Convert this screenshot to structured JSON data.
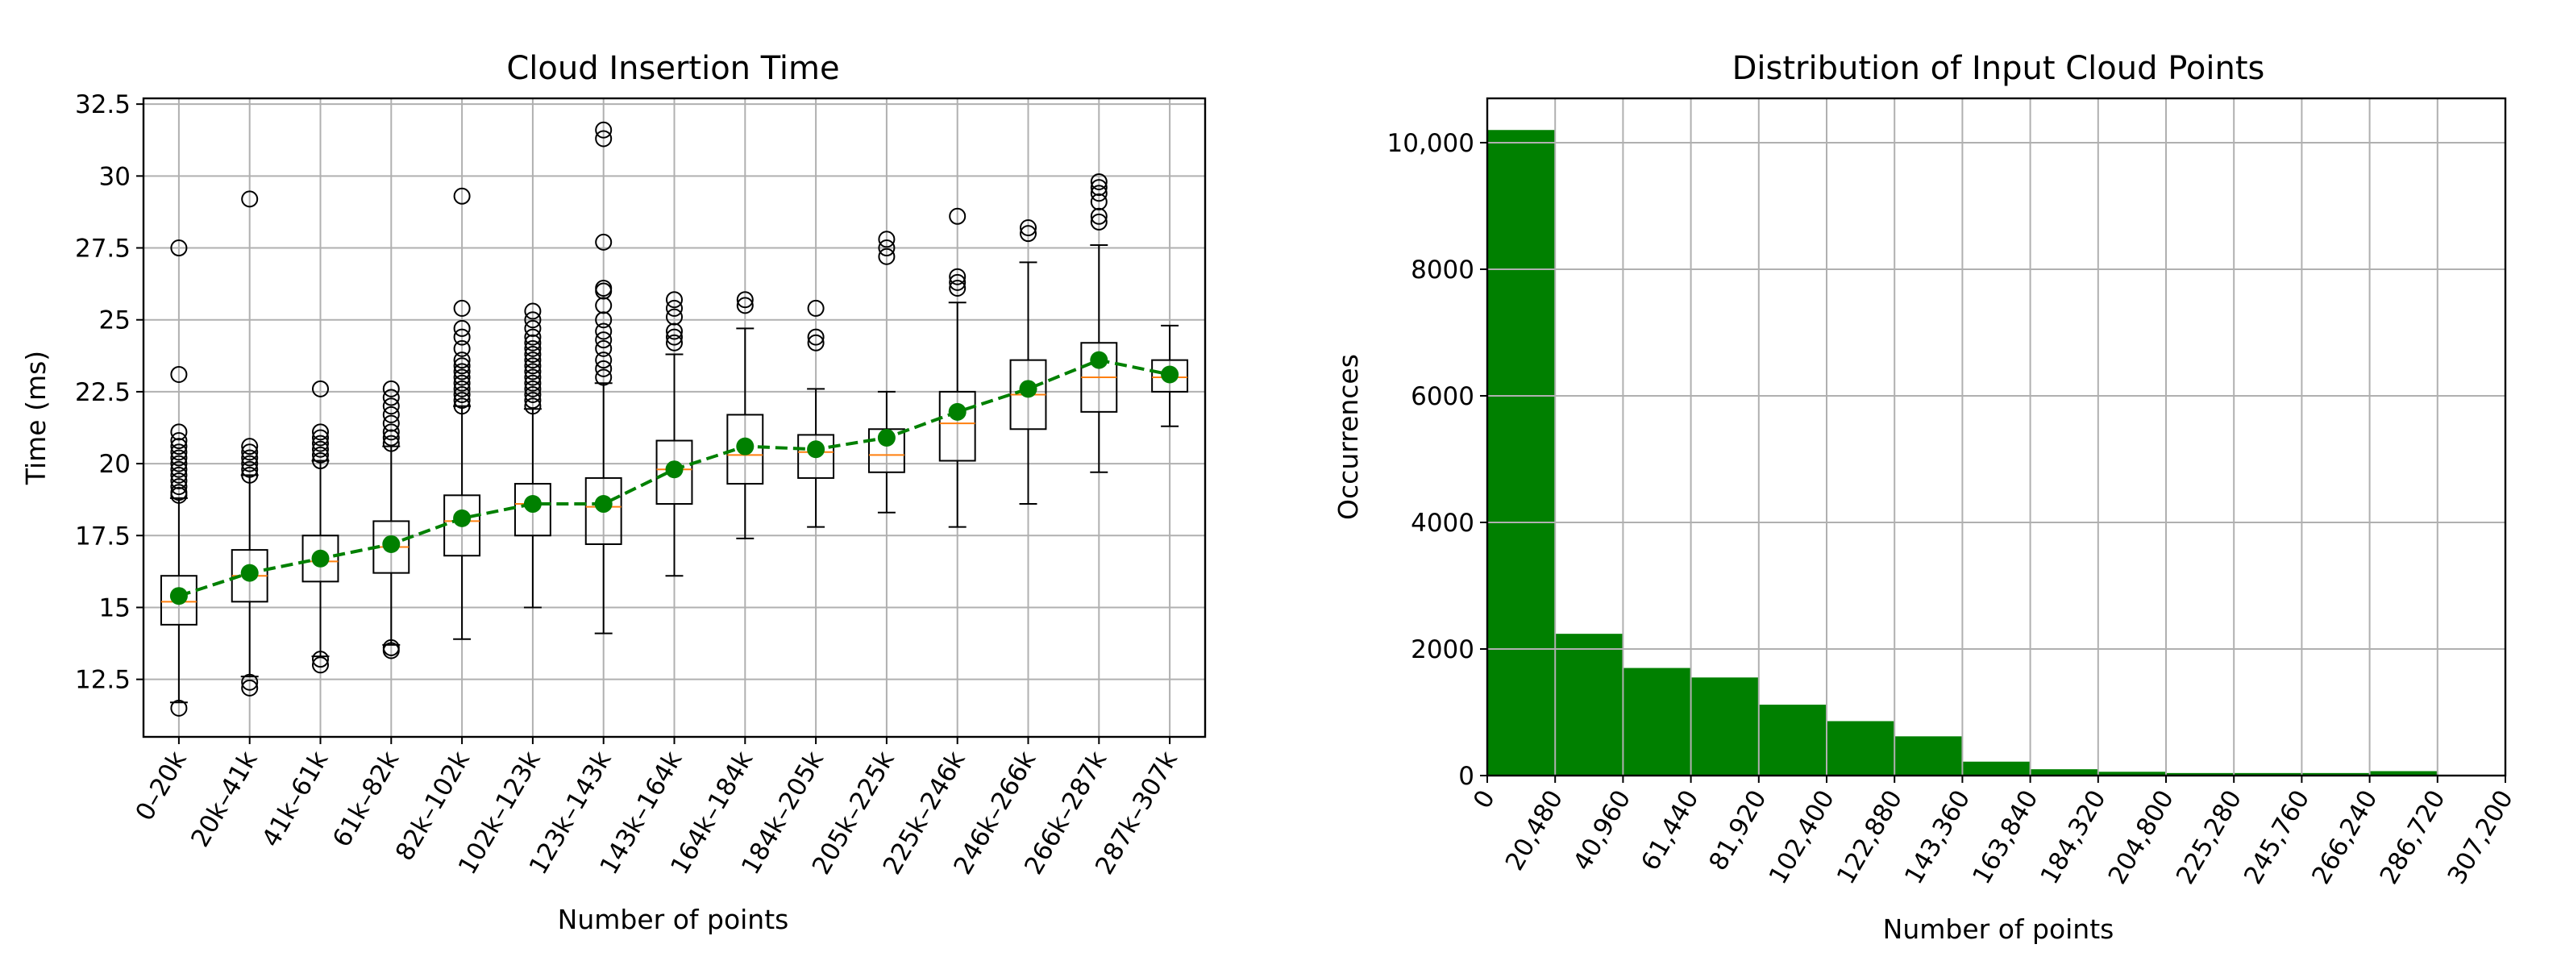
{
  "chart_data": [
    {
      "type": "box",
      "title": "Cloud Insertion Time",
      "xlabel": "Number of points",
      "ylabel": "Time (ms)",
      "ylim": [
        10.5,
        32.7
      ],
      "yticks": [
        12.5,
        15,
        17.5,
        20,
        22.5,
        25,
        27.5,
        30,
        32.5
      ],
      "ytick_labels": [
        "12.5",
        "15",
        "17.5",
        "20",
        "22.5",
        "25",
        "27.5",
        "30",
        "32.5"
      ],
      "grid": true,
      "colors": {
        "box": "#000000",
        "median": "#ff7f0e",
        "mean": "#008000"
      },
      "categories": [
        "0–20k",
        "20k–41k",
        "41k–61k",
        "61k–82k",
        "82k–102k",
        "102k–123k",
        "123k–143k",
        "143k–164k",
        "164k–184k",
        "184k–205k",
        "205k–225k",
        "225k–246k",
        "246k–266k",
        "266k–287k",
        "287k–307k"
      ],
      "boxes": [
        {
          "whislo": 11.7,
          "q1": 14.4,
          "med": 15.2,
          "q3": 16.1,
          "whishi": 18.8,
          "mean": 15.4,
          "fliers": [
            11.5,
            18.9,
            19.0,
            19.2,
            19.4,
            19.6,
            19.8,
            20.0,
            20.2,
            20.4,
            20.6,
            20.8,
            21.1,
            23.1,
            27.5
          ]
        },
        {
          "whislo": 12.6,
          "q1": 15.2,
          "med": 16.1,
          "q3": 17.0,
          "whishi": 19.6,
          "mean": 16.2,
          "fliers": [
            12.2,
            12.4,
            19.6,
            19.8,
            20.0,
            20.2,
            20.4,
            20.6,
            29.2
          ]
        },
        {
          "whislo": 13.3,
          "q1": 15.9,
          "med": 16.6,
          "q3": 17.5,
          "whishi": 20.1,
          "mean": 16.7,
          "fliers": [
            13.0,
            13.2,
            20.1,
            20.3,
            20.5,
            20.7,
            20.9,
            21.1,
            22.6
          ]
        },
        {
          "whislo": 13.7,
          "q1": 16.2,
          "med": 17.1,
          "q3": 18.0,
          "whishi": 20.6,
          "mean": 17.2,
          "fliers": [
            13.5,
            13.6,
            20.7,
            20.9,
            21.1,
            21.4,
            21.7,
            22.0,
            22.3,
            22.6
          ]
        },
        {
          "whislo": 13.9,
          "q1": 16.8,
          "med": 18.0,
          "q3": 18.9,
          "whishi": 22.0,
          "mean": 18.1,
          "fliers": [
            22.0,
            22.2,
            22.4,
            22.6,
            22.8,
            23.0,
            23.2,
            23.4,
            23.6,
            24.0,
            24.4,
            24.7,
            25.4,
            29.3
          ]
        },
        {
          "whislo": 15.0,
          "q1": 17.5,
          "med": 18.6,
          "q3": 19.3,
          "whishi": 21.9,
          "mean": 18.6,
          "fliers": [
            22.0,
            22.2,
            22.4,
            22.6,
            22.8,
            23.0,
            23.2,
            23.4,
            23.6,
            23.8,
            24.0,
            24.2,
            24.4,
            24.7,
            25.0,
            25.3
          ]
        },
        {
          "whislo": 14.1,
          "q1": 17.2,
          "med": 18.5,
          "q3": 19.5,
          "whishi": 22.8,
          "mean": 18.6,
          "fliers": [
            23.0,
            23.3,
            23.6,
            24.0,
            24.3,
            24.6,
            25.0,
            25.5,
            26.0,
            26.1,
            27.7,
            31.3,
            31.6
          ]
        },
        {
          "whislo": 16.1,
          "q1": 18.6,
          "med": 19.8,
          "q3": 20.8,
          "whishi": 23.8,
          "mean": 19.8,
          "fliers": [
            24.2,
            24.4,
            24.6,
            25.1,
            25.4,
            25.7
          ]
        },
        {
          "whislo": 17.4,
          "q1": 19.3,
          "med": 20.3,
          "q3": 21.7,
          "whishi": 24.7,
          "mean": 20.6,
          "fliers": [
            25.5,
            25.7
          ]
        },
        {
          "whislo": 17.8,
          "q1": 19.5,
          "med": 20.4,
          "q3": 21.0,
          "whishi": 22.6,
          "mean": 20.5,
          "fliers": [
            24.2,
            24.4,
            25.4
          ]
        },
        {
          "whislo": 18.3,
          "q1": 19.7,
          "med": 20.3,
          "q3": 21.2,
          "whishi": 22.5,
          "mean": 20.9,
          "fliers": [
            27.2,
            27.5,
            27.8
          ]
        },
        {
          "whislo": 17.8,
          "q1": 20.1,
          "med": 21.4,
          "q3": 22.5,
          "whishi": 25.6,
          "mean": 21.8,
          "fliers": [
            26.1,
            26.3,
            26.5,
            28.6
          ]
        },
        {
          "whislo": 18.6,
          "q1": 21.2,
          "med": 22.4,
          "q3": 23.6,
          "whishi": 27.0,
          "mean": 22.6,
          "fliers": [
            28.0,
            28.2
          ]
        },
        {
          "whislo": 19.7,
          "q1": 21.8,
          "med": 23.0,
          "q3": 24.2,
          "whishi": 27.6,
          "mean": 23.6,
          "fliers": [
            28.4,
            28.6,
            29.1,
            29.4,
            29.6,
            29.8
          ]
        },
        {
          "whislo": 21.3,
          "q1": 22.5,
          "med": 23.0,
          "q3": 23.6,
          "whishi": 24.8,
          "mean": 23.1,
          "fliers": []
        }
      ]
    },
    {
      "type": "histogram",
      "title": "Distribution of Input Cloud Points",
      "xlabel": "Number of points",
      "ylabel": "Occurrences",
      "xlim": [
        0,
        307200
      ],
      "ylim": [
        0,
        10700
      ],
      "xticks": [
        0,
        20480,
        40960,
        61440,
        81920,
        102400,
        122880,
        143360,
        163840,
        184320,
        204800,
        225280,
        245760,
        266240,
        286720,
        307200
      ],
      "xtick_labels": [
        "0",
        "20,480",
        "40,960",
        "61,440",
        "81,920",
        "102,400",
        "122,880",
        "143,360",
        "163,840",
        "184,320",
        "204,800",
        "225,280",
        "245,760",
        "266,240",
        "286,720",
        "307,200"
      ],
      "yticks": [
        0,
        2000,
        4000,
        6000,
        8000,
        10000
      ],
      "ytick_labels": [
        "0",
        "2000",
        "4000",
        "6000",
        "8000",
        "10,000"
      ],
      "grid": true,
      "color": "#008000",
      "bin_edges": [
        0,
        20480,
        40960,
        61440,
        81920,
        102400,
        122880,
        143360,
        163840,
        184320,
        204800,
        225280,
        245760,
        266240,
        286720
      ],
      "values": [
        10200,
        2240,
        1700,
        1550,
        1120,
        860,
        620,
        220,
        100,
        60,
        40,
        40,
        40,
        70
      ]
    }
  ]
}
